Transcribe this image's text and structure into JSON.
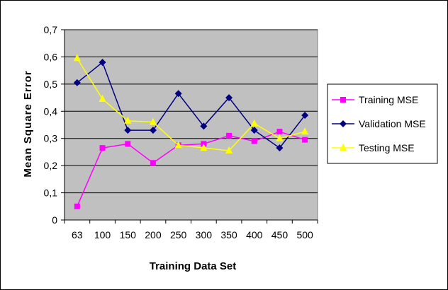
{
  "chart_data": {
    "type": "line",
    "title": "",
    "xlabel": "Training Data Set",
    "ylabel": "Mean Square Error",
    "categories": [
      "63",
      "100",
      "150",
      "200",
      "250",
      "300",
      "350",
      "400",
      "450",
      "500"
    ],
    "ylim": [
      0,
      0.7
    ],
    "yticks": [
      "0",
      "0,1",
      "0,2",
      "0,3",
      "0,4",
      "0,5",
      "0,6",
      "0,7"
    ],
    "ytick_values": [
      0,
      0.1,
      0.2,
      0.3,
      0.4,
      0.5,
      0.6,
      0.7
    ],
    "grid": "horizontal",
    "legend_position": "right",
    "plot_background": "#c0c0c0",
    "series": [
      {
        "name": "Training MSE",
        "color": "#ff00ff",
        "marker": "square",
        "values": [
          0.05,
          0.265,
          0.28,
          0.21,
          0.275,
          0.28,
          0.31,
          0.29,
          0.325,
          0.295
        ]
      },
      {
        "name": "Validation MSE",
        "color": "#000080",
        "marker": "diamond",
        "values": [
          0.505,
          0.58,
          0.33,
          0.33,
          0.465,
          0.345,
          0.45,
          0.33,
          0.265,
          0.385
        ]
      },
      {
        "name": "Testing MSE",
        "color": "#ffff00",
        "marker": "triangle",
        "values": [
          0.595,
          0.445,
          0.365,
          0.36,
          0.275,
          0.265,
          0.255,
          0.355,
          0.3,
          0.325
        ]
      }
    ]
  }
}
